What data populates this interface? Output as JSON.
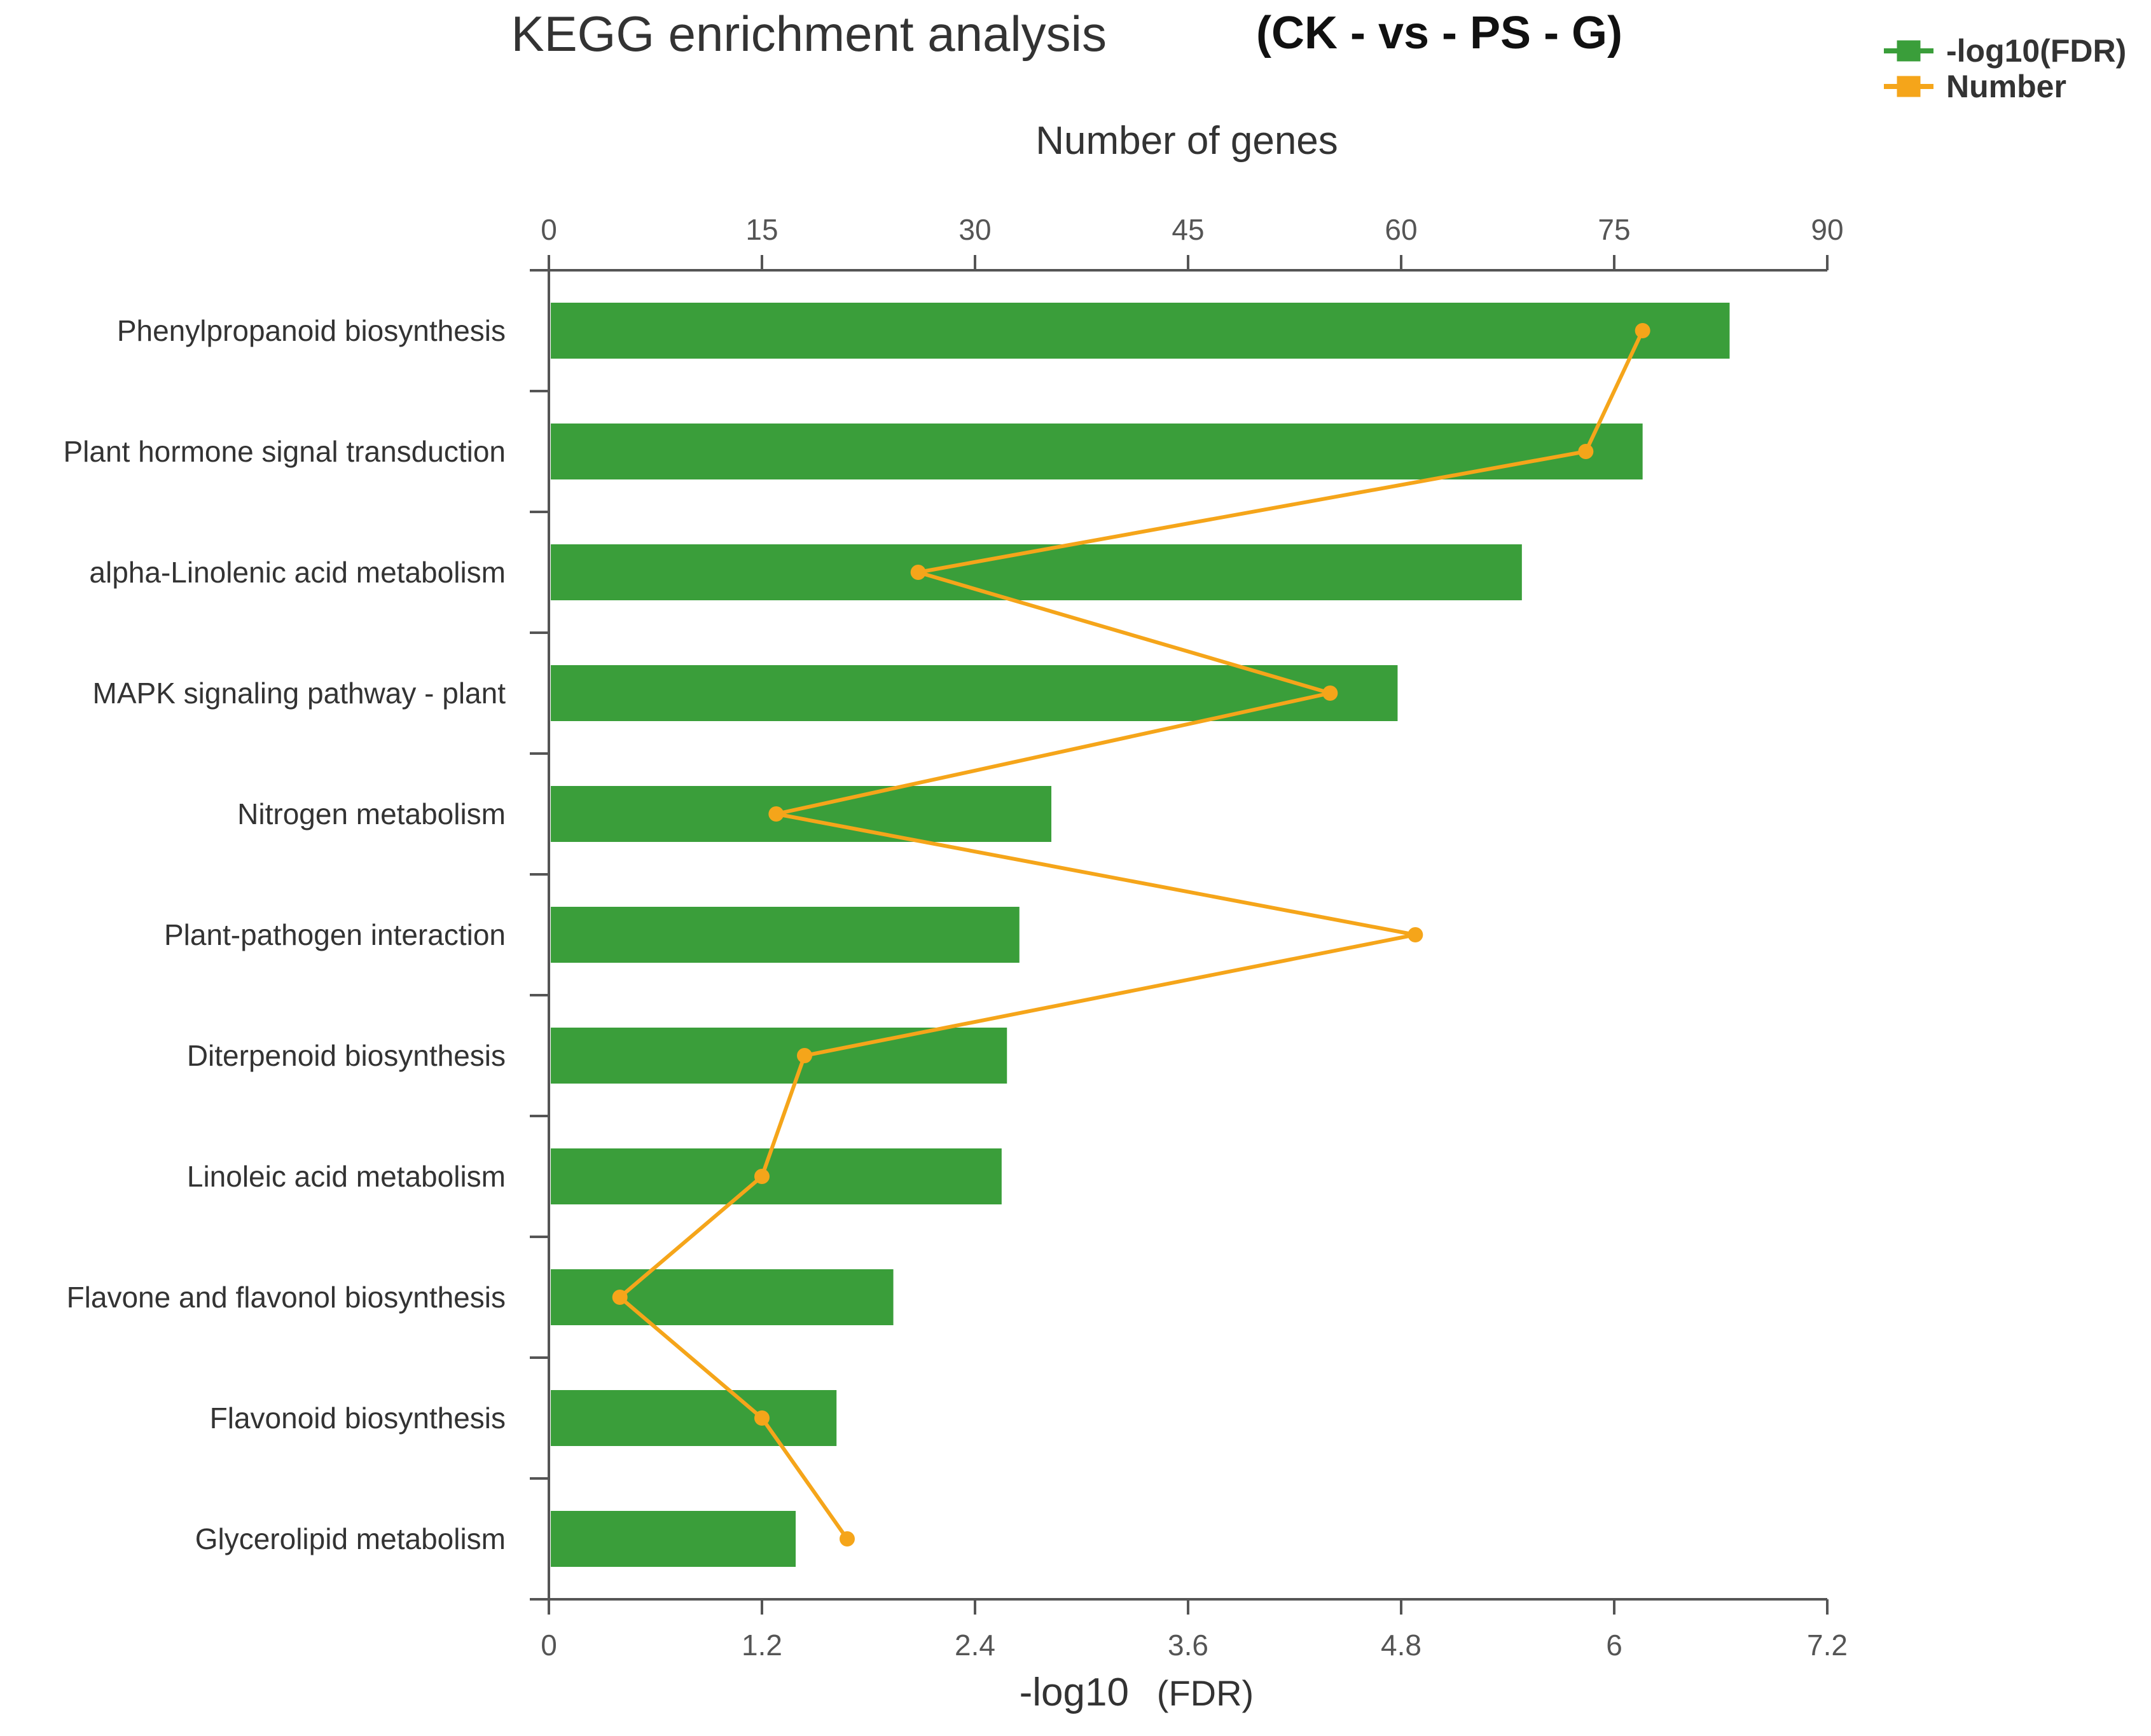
{
  "colors": {
    "bar": "#3a9e3a",
    "line": "#f5a51a",
    "axis": "#555555"
  },
  "chart_data": {
    "type": "bar",
    "title": "KEGG enrichment analysis",
    "subtitle": "(CK - vs - PS - G)",
    "legend": [
      {
        "label": "-log10(FDR)",
        "color": "#3a9e3a"
      },
      {
        "label": "Number",
        "color": "#f5a51a"
      }
    ],
    "legend_position": "top-right",
    "categories": [
      "Phenylpropanoid biosynthesis",
      "Plant hormone signal transduction",
      "alpha-Linolenic acid metabolism",
      "MAPK signaling pathway - plant",
      "Nitrogen metabolism",
      "Plant-pathogen interaction",
      "Diterpenoid biosynthesis",
      "Linoleic acid metabolism",
      "Flavone and flavonol biosynthesis",
      "Flavonoid biosynthesis",
      "Glycerolipid metabolism"
    ],
    "series": [
      {
        "name": "-log10(FDR)",
        "type": "bar",
        "axis": "bottom",
        "values": [
          6.65,
          6.16,
          5.48,
          4.78,
          2.83,
          2.65,
          2.58,
          2.55,
          1.94,
          1.62,
          1.39
        ]
      },
      {
        "name": "Number",
        "type": "line",
        "axis": "top",
        "values": [
          77,
          73,
          26,
          55,
          16,
          61,
          18,
          15,
          5,
          15,
          21
        ]
      }
    ],
    "xlabel_bottom": "-log10",
    "xlabel_bottom_suffix": "(FDR)",
    "xlabel_top": "Number of genes",
    "xlim_bottom": [
      0,
      7.2
    ],
    "xlim_top": [
      0,
      90
    ],
    "ticks_bottom": [
      "0",
      "1.2",
      "2.4",
      "3.6",
      "4.8",
      "6",
      "7.2"
    ],
    "ticks_top": [
      "0",
      "15",
      "30",
      "45",
      "60",
      "75",
      "90"
    ]
  }
}
